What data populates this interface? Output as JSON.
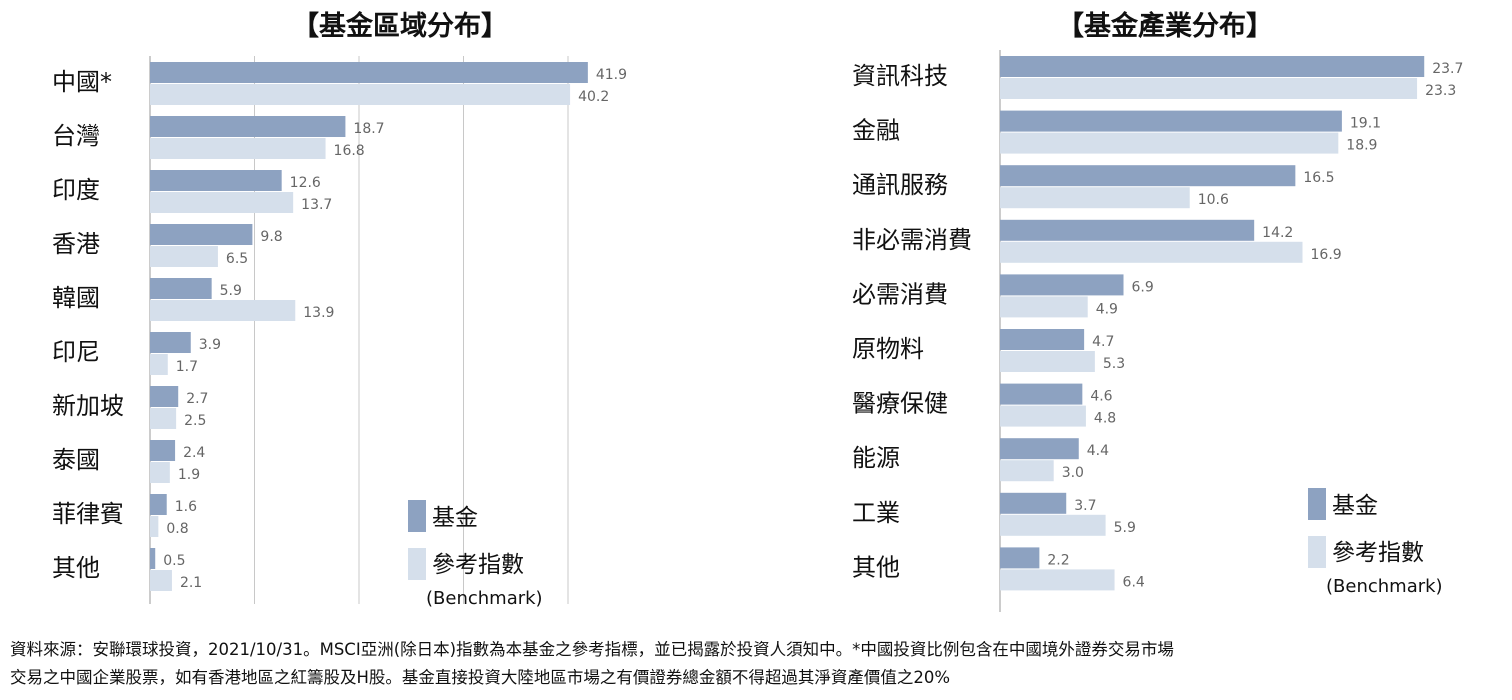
{
  "colors": {
    "fund": "#8da2c1",
    "benchmark": "#d5dfeb",
    "grid": "#c8c8c8",
    "axis": "#999999"
  },
  "chart_data": [
    {
      "type": "bar",
      "orientation": "horizontal",
      "title": "【基金區域分布】",
      "categories": [
        "中國*",
        "台灣",
        "印度",
        "香港",
        "韓國",
        "印尼",
        "新加坡",
        "泰國",
        "菲律賓",
        "其他"
      ],
      "series": [
        {
          "name": "基金",
          "values": [
            41.9,
            18.7,
            12.6,
            9.8,
            5.9,
            3.9,
            2.7,
            2.4,
            1.6,
            0.5
          ]
        },
        {
          "name": "參考指數",
          "values": [
            40.2,
            16.8,
            13.7,
            6.5,
            13.9,
            1.7,
            2.5,
            1.9,
            0.8,
            2.1
          ]
        }
      ],
      "xlim": [
        0,
        45
      ],
      "grid": true,
      "legend": {
        "position": "bottom-right",
        "fund_label": "基金",
        "benchmark_label": "參考指數",
        "benchmark_sub": "(Benchmark)"
      }
    },
    {
      "type": "bar",
      "orientation": "horizontal",
      "title": "【基金產業分布】",
      "categories": [
        "資訊科技",
        "金融",
        "通訊服務",
        "非必需消費",
        "必需消費",
        "原物料",
        "醫療保健",
        "能源",
        "工業",
        "其他"
      ],
      "series": [
        {
          "name": "基金",
          "values": [
            23.7,
            19.1,
            16.5,
            14.2,
            6.9,
            4.7,
            4.6,
            4.4,
            3.7,
            2.2
          ]
        },
        {
          "name": "參考指數",
          "values": [
            23.3,
            18.9,
            10.6,
            16.9,
            4.9,
            5.3,
            4.8,
            3.0,
            5.9,
            6.4
          ]
        }
      ],
      "xlim": [
        0,
        24
      ],
      "grid": false,
      "legend": {
        "position": "bottom-right",
        "fund_label": "基金",
        "benchmark_label": "參考指數",
        "benchmark_sub": "(Benchmark)"
      }
    }
  ],
  "footnote": {
    "line1": "資料來源：安聯環球投資，2021/10/31。MSCI亞洲(除日本)指數為本基金之參考指標，並已揭露於投資人須知中。*中國投資比例包含在中國境外證券交易市場",
    "line2": "交易之中國企業股票，如有香港地區之紅籌股及H股。基金直接投資大陸地區市場之有價證券總金額不得超過其淨資產價值之20%"
  }
}
